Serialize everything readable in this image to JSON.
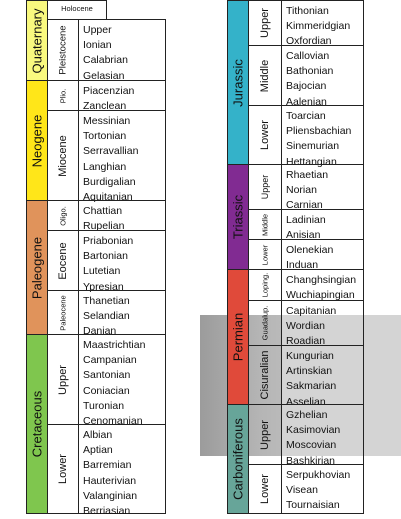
{
  "periods": {
    "quaternary": "Quaternary",
    "neogene": "Neogene",
    "paleogene": "Paleogene",
    "cretaceous": "Cretaceous",
    "jurassic": "Jurassic",
    "triassic": "Triassic",
    "permian": "Permian",
    "carboniferous": "Carboniferous"
  },
  "epochs": {
    "holocene": "Holocene",
    "pleistocene": "Pleistocene",
    "pliocene": "Plio.",
    "miocene": "Miocene",
    "oligocene": "Oligo.",
    "eocene": "Eocene",
    "paleocene": "Paleocene",
    "cretaceous_upper": "Upper",
    "cretaceous_lower": "Lower",
    "jurassic_upper": "Upper",
    "jurassic_middle": "Middle",
    "jurassic_lower": "Lower",
    "triassic_upper": "Upper",
    "triassic_middle": "Middle",
    "triassic_lower": "Lower",
    "lopingian": "Loping.",
    "guadalupian": "Guadalup.",
    "cisuralian": "Cisuralian",
    "carboniferous_upper": "Upper",
    "carboniferous_lower": "Lower"
  },
  "stages": {
    "pleistocene": [
      "Upper",
      "Ionian",
      "Calabrian",
      "Gelasian"
    ],
    "pliocene": [
      "Piacenzian",
      "Zanclean"
    ],
    "miocene": [
      "Messinian",
      "Tortonian",
      "Serravallian",
      "Langhian",
      "Burdigalian",
      "Aquitanian"
    ],
    "oligocene": [
      "Chattian",
      "Rupelian"
    ],
    "eocene": [
      "Priabonian",
      "Bartonian",
      "Lutetian",
      "Ypresian"
    ],
    "paleocene": [
      "Thanetian",
      "Selandian",
      "Danian"
    ],
    "cretaceous_upper": [
      "Maastrichtian",
      "Campanian",
      "Santonian",
      "Coniacian",
      "Turonian",
      "Cenomanian"
    ],
    "cretaceous_lower": [
      "Albian",
      "Aptian",
      "Barremian",
      "Hauterivian",
      "Valanginian",
      "Berriasian"
    ],
    "jurassic_upper": [
      "Tithonian",
      "Kimmeridgian",
      "Oxfordian"
    ],
    "jurassic_middle": [
      "Callovian",
      "Bathonian",
      "Bajocian",
      "Aalenian"
    ],
    "jurassic_lower": [
      "Toarcian",
      "Pliensbachian",
      "Sinemurian",
      "Hettangian"
    ],
    "triassic_upper": [
      "Rhaetian",
      "Norian",
      "Carnian"
    ],
    "triassic_middle": [
      "Ladinian",
      "Anisian"
    ],
    "triassic_lower": [
      "Olenekian",
      "Induan"
    ],
    "lopingian": [
      "Changhsingian",
      "Wuchiapingian"
    ],
    "guadalupian": [
      "Capitanian",
      "Wordian",
      "Roadian"
    ],
    "cisuralian": [
      "Kungurian",
      "Artinskian",
      "Sakmarian",
      "Asselian"
    ],
    "carboniferous_upper": [
      "Gzhelian",
      "Kasimovian",
      "Moscovian",
      "Bashkirian"
    ],
    "carboniferous_lower": [
      "Serpukhovian",
      "Visean",
      "Tournaisian"
    ]
  },
  "colors": {
    "quaternary": "#F9F97F",
    "neogene": "#FFE619",
    "paleogene": "#E0935B",
    "cretaceous": "#7FC64E",
    "jurassic": "#34B2C9",
    "triassic": "#812B92",
    "permian": "#E04A3A",
    "carboniferous": "#67A599",
    "highlight_band": "#9e9e9e"
  }
}
